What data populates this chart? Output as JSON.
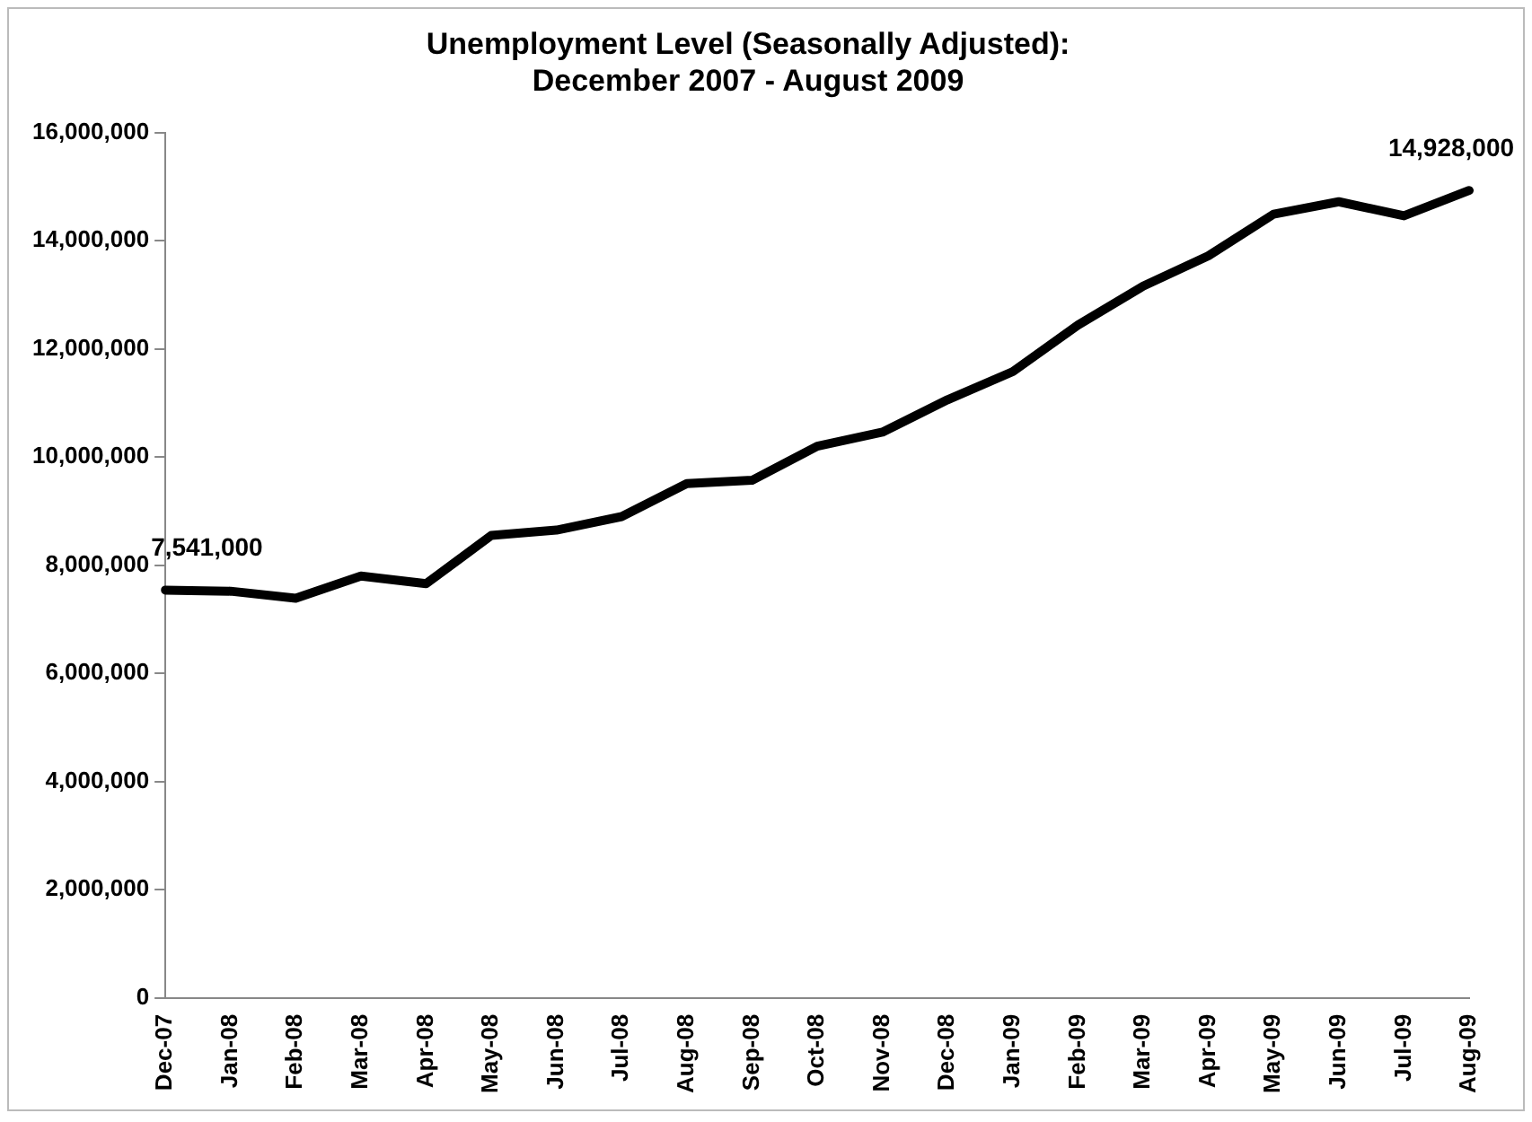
{
  "chart_data": {
    "type": "line",
    "title": [
      "Unemployment Level (Seasonally Adjusted):",
      "December 2007 - August 2009"
    ],
    "categories": [
      "Dec-07",
      "Jan-08",
      "Feb-08",
      "Mar-08",
      "Apr-08",
      "May-08",
      "Jun-08",
      "Jul-08",
      "Aug-08",
      "Sep-08",
      "Oct-08",
      "Nov-08",
      "Dec-08",
      "Jan-09",
      "Feb-09",
      "Mar-09",
      "Apr-09",
      "May-09",
      "Jun-09",
      "Jul-09",
      "Aug-09"
    ],
    "series": [
      {
        "color": "#000000",
        "values": [
          7541000,
          7520000,
          7390000,
          7800000,
          7660000,
          8550000,
          8650000,
          8900000,
          9510000,
          9570000,
          10200000,
          10460000,
          11060000,
          11580000,
          12440000,
          13160000,
          13720000,
          14490000,
          14720000,
          14460000,
          14928000
        ],
        "value_labels": [
          "7,541,000",
          null,
          null,
          null,
          null,
          null,
          null,
          null,
          null,
          null,
          null,
          null,
          null,
          null,
          null,
          null,
          null,
          null,
          null,
          null,
          "14,928,000"
        ]
      }
    ],
    "ylim": [
      0,
      16000000
    ],
    "yticks": [
      {
        "value": 0,
        "label": "0"
      },
      {
        "value": 2000000,
        "label": "2,000,000"
      },
      {
        "value": 4000000,
        "label": "4,000,000"
      },
      {
        "value": 6000000,
        "label": "6,000,000"
      },
      {
        "value": 8000000,
        "label": "8,000,000"
      },
      {
        "value": 10000000,
        "label": "10,000,000"
      },
      {
        "value": 12000000,
        "label": "12,000,000"
      },
      {
        "value": 14000000,
        "label": "14,000,000"
      },
      {
        "value": 16000000,
        "label": "16,000,000"
      }
    ],
    "grid": false,
    "legend": false,
    "marker": "none",
    "line_style": "solid"
  }
}
